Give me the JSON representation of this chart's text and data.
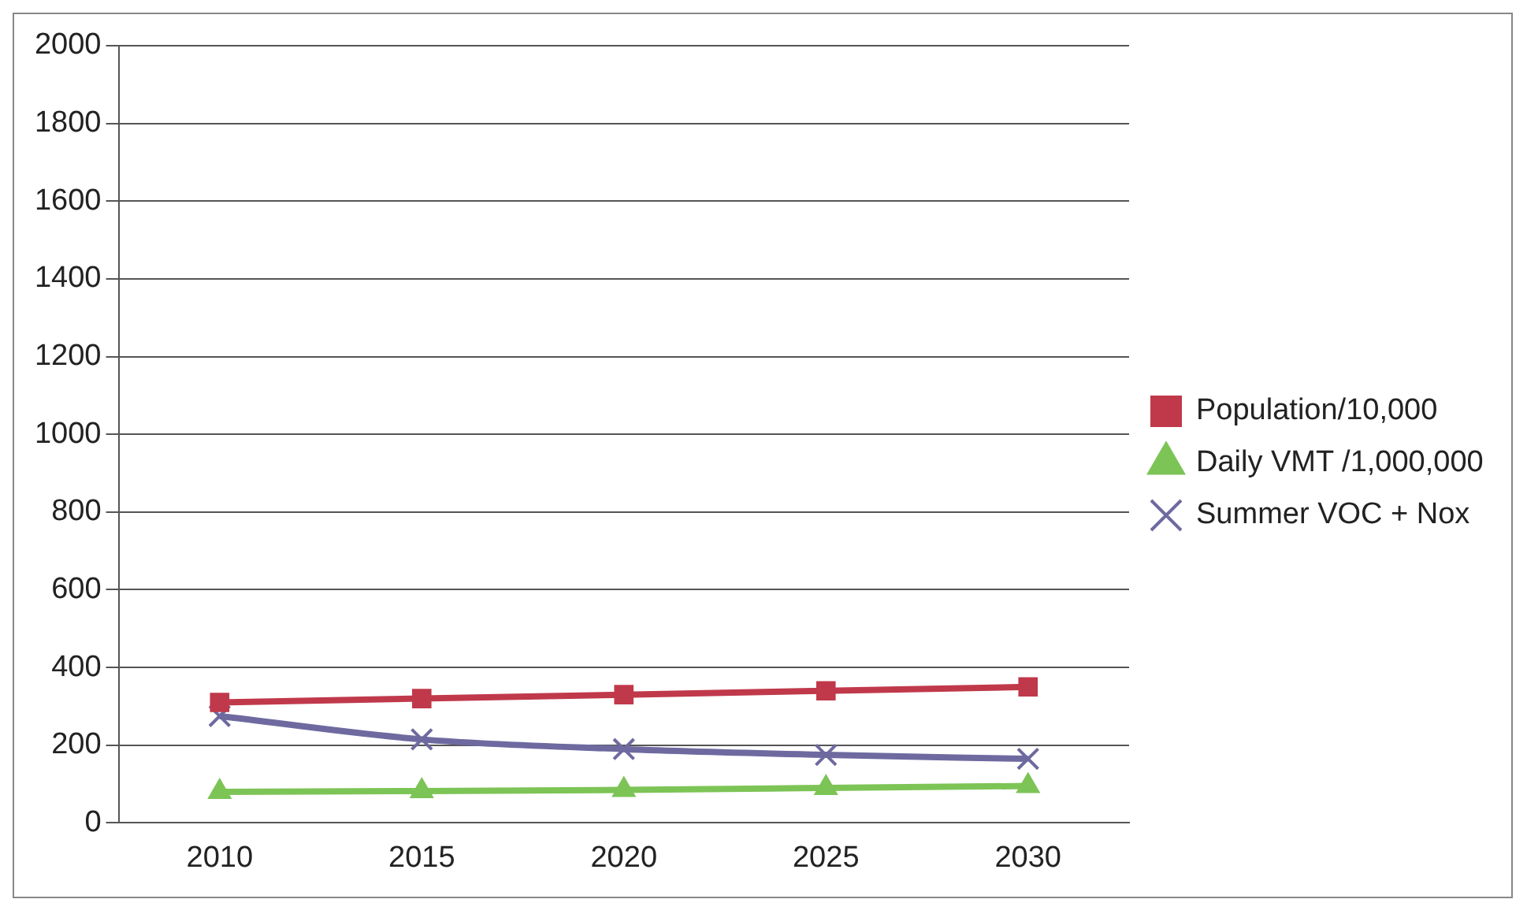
{
  "chart_data": {
    "type": "line",
    "categories": [
      "2010",
      "2015",
      "2020",
      "2025",
      "2030"
    ],
    "series": [
      {
        "name": "Population/10,000",
        "color": "#c0394b",
        "marker": "square",
        "values": [
          310,
          320,
          330,
          340,
          350
        ]
      },
      {
        "name": "Daily VMT /1,000,000",
        "color": "#7dc456",
        "marker": "triangle",
        "values": [
          80,
          82,
          85,
          90,
          95
        ]
      },
      {
        "name": "Summer VOC + Nox",
        "color": "#6e6aa0",
        "marker": "cross",
        "values": [
          275,
          215,
          190,
          175,
          165
        ]
      }
    ],
    "ylim": [
      0,
      2000
    ],
    "yticks": [
      0,
      200,
      400,
      600,
      800,
      1000,
      1200,
      1400,
      1600,
      1800,
      2000
    ],
    "grid": "y",
    "legend": "right"
  }
}
